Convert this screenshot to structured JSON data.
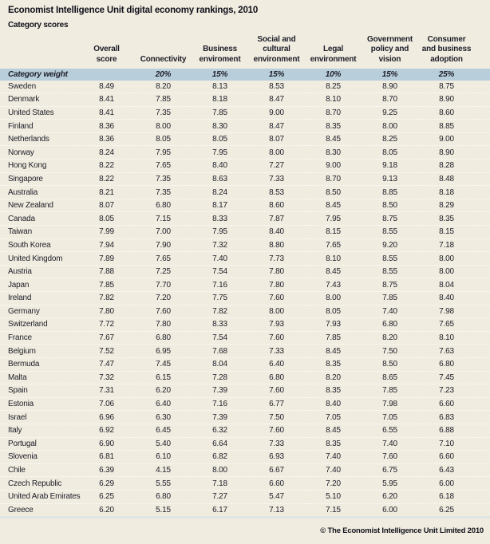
{
  "title": "Economist Intelligence Unit digital economy rankings, 2010",
  "subtitle": "Category scores",
  "footer_copyright": "© The Economist Intelligence Unit Limited 2010",
  "colors": {
    "page_background": "#f0ecdf",
    "weight_row_background": "#b8cfdb",
    "text": "#1d1d29"
  },
  "table": {
    "weight_label": "Category weight",
    "column_header_lines": [
      [
        "Overall",
        "score"
      ],
      [
        "Connectivity"
      ],
      [
        "Business",
        "enviroment"
      ],
      [
        "Social and",
        "cultural",
        "environment"
      ],
      [
        "Legal",
        "environment"
      ],
      [
        "Government",
        "policy and",
        "vision"
      ],
      [
        "Consumer",
        "and business",
        "adoption"
      ]
    ]
  },
  "chart_data": {
    "type": "table",
    "title": "Economist Intelligence Unit digital economy rankings, 2010",
    "subtitle": "Category scores",
    "columns": [
      "Overall score",
      "Connectivity",
      "Business enviroment",
      "Social and cultural environment",
      "Legal environment",
      "Government policy and vision",
      "Consumer and business adoption"
    ],
    "category_weights": [
      "",
      "20%",
      "15%",
      "15%",
      "10%",
      "15%",
      "25%"
    ],
    "rows": [
      {
        "country": "Sweden",
        "values": [
          "8.49",
          "8.20",
          "8.13",
          "8.53",
          "8.25",
          "8.90",
          "8.75"
        ]
      },
      {
        "country": "Denmark",
        "values": [
          "8.41",
          "7.85",
          "8.18",
          "8.47",
          "8.10",
          "8.70",
          "8.90"
        ]
      },
      {
        "country": "United States",
        "values": [
          "8.41",
          "7.35",
          "7.85",
          "9.00",
          "8.70",
          "9.25",
          "8.60"
        ]
      },
      {
        "country": "Finland",
        "values": [
          "8.36",
          "8.00",
          "8.30",
          "8.47",
          "8.35",
          "8.00",
          "8.85"
        ]
      },
      {
        "country": "Netherlands",
        "values": [
          "8.36",
          "8.05",
          "8.05",
          "8.07",
          "8.45",
          "8.25",
          "9.00"
        ]
      },
      {
        "country": "Norway",
        "values": [
          "8.24",
          "7.95",
          "7.95",
          "8.00",
          "8.30",
          "8.05",
          "8.90"
        ]
      },
      {
        "country": "Hong Kong",
        "values": [
          "8.22",
          "7.65",
          "8.40",
          "7.27",
          "9.00",
          "9.18",
          "8.28"
        ]
      },
      {
        "country": "Singapore",
        "values": [
          "8.22",
          "7.35",
          "8.63",
          "7.33",
          "8.70",
          "9.13",
          "8.48"
        ]
      },
      {
        "country": "Australia",
        "values": [
          "8.21",
          "7.35",
          "8.24",
          "8.53",
          "8.50",
          "8.85",
          "8.18"
        ]
      },
      {
        "country": "New Zealand",
        "values": [
          "8.07",
          "6.80",
          "8.17",
          "8.60",
          "8.45",
          "8.50",
          "8.29"
        ]
      },
      {
        "country": "Canada",
        "values": [
          "8.05",
          "7.15",
          "8.33",
          "7.87",
          "7.95",
          "8.75",
          "8.35"
        ]
      },
      {
        "country": "Taiwan",
        "values": [
          "7.99",
          "7.00",
          "7.95",
          "8.40",
          "8.15",
          "8.55",
          "8.15"
        ]
      },
      {
        "country": "South Korea",
        "values": [
          "7.94",
          "7.90",
          "7.32",
          "8.80",
          "7.65",
          "9.20",
          "7.18"
        ]
      },
      {
        "country": "United Kingdom",
        "values": [
          "7.89",
          "7.65",
          "7.40",
          "7.73",
          "8.10",
          "8.55",
          "8.00"
        ]
      },
      {
        "country": "Austria",
        "values": [
          "7.88",
          "7.25",
          "7.54",
          "7.80",
          "8.45",
          "8.55",
          "8.00"
        ]
      },
      {
        "country": "Japan",
        "values": [
          "7.85",
          "7.70",
          "7.16",
          "7.80",
          "7.43",
          "8.75",
          "8.04"
        ]
      },
      {
        "country": "Ireland",
        "values": [
          "7.82",
          "7.20",
          "7.75",
          "7.60",
          "8.00",
          "7.85",
          "8.40"
        ]
      },
      {
        "country": "Germany",
        "values": [
          "7.80",
          "7.60",
          "7.82",
          "8.00",
          "8.05",
          "7.40",
          "7.98"
        ]
      },
      {
        "country": "Switzerland",
        "values": [
          "7.72",
          "7.80",
          "8.33",
          "7.93",
          "7.93",
          "6.80",
          "7.65"
        ]
      },
      {
        "country": "France",
        "values": [
          "7.67",
          "6.80",
          "7.54",
          "7.60",
          "7.85",
          "8.20",
          "8.10"
        ]
      },
      {
        "country": "Belgium",
        "values": [
          "7.52",
          "6.95",
          "7.68",
          "7.33",
          "8.45",
          "7.50",
          "7.63"
        ]
      },
      {
        "country": "Bermuda",
        "values": [
          "7.47",
          "7.45",
          "8.04",
          "6.40",
          "8.35",
          "8.50",
          "6.80"
        ]
      },
      {
        "country": "Malta",
        "values": [
          "7.32",
          "6.15",
          "7.28",
          "6.80",
          "8.20",
          "8.65",
          "7.45"
        ]
      },
      {
        "country": "Spain",
        "values": [
          "7.31",
          "6.20",
          "7.39",
          "7.60",
          "8.35",
          "7.85",
          "7.23"
        ]
      },
      {
        "country": "Estonia",
        "values": [
          "7.06",
          "6.40",
          "7.16",
          "6.77",
          "8.40",
          "7.98",
          "6.60"
        ]
      },
      {
        "country": "Israel",
        "values": [
          "6.96",
          "6.30",
          "7.39",
          "7.50",
          "7.05",
          "7.05",
          "6.83"
        ]
      },
      {
        "country": "Italy",
        "values": [
          "6.92",
          "6.45",
          "6.32",
          "7.60",
          "8.45",
          "6.55",
          "6.88"
        ]
      },
      {
        "country": "Portugal",
        "values": [
          "6.90",
          "5.40",
          "6.64",
          "7.33",
          "8.35",
          "7.40",
          "7.10"
        ]
      },
      {
        "country": "Slovenia",
        "values": [
          "6.81",
          "6.10",
          "6.82",
          "6.93",
          "7.40",
          "7.60",
          "6.60"
        ]
      },
      {
        "country": "Chile",
        "values": [
          "6.39",
          "4.15",
          "8.00",
          "6.67",
          "7.40",
          "6.75",
          "6.43"
        ]
      },
      {
        "country": "Czech Republic",
        "values": [
          "6.29",
          "5.55",
          "7.18",
          "6.60",
          "7.20",
          "5.95",
          "6.00"
        ]
      },
      {
        "country": "United Arab Emirates",
        "values": [
          "6.25",
          "6.80",
          "7.27",
          "5.47",
          "5.10",
          "6.20",
          "6.18"
        ]
      },
      {
        "country": "Greece",
        "values": [
          "6.20",
          "5.15",
          "6.17",
          "7.13",
          "7.15",
          "6.00",
          "6.25"
        ]
      }
    ]
  }
}
